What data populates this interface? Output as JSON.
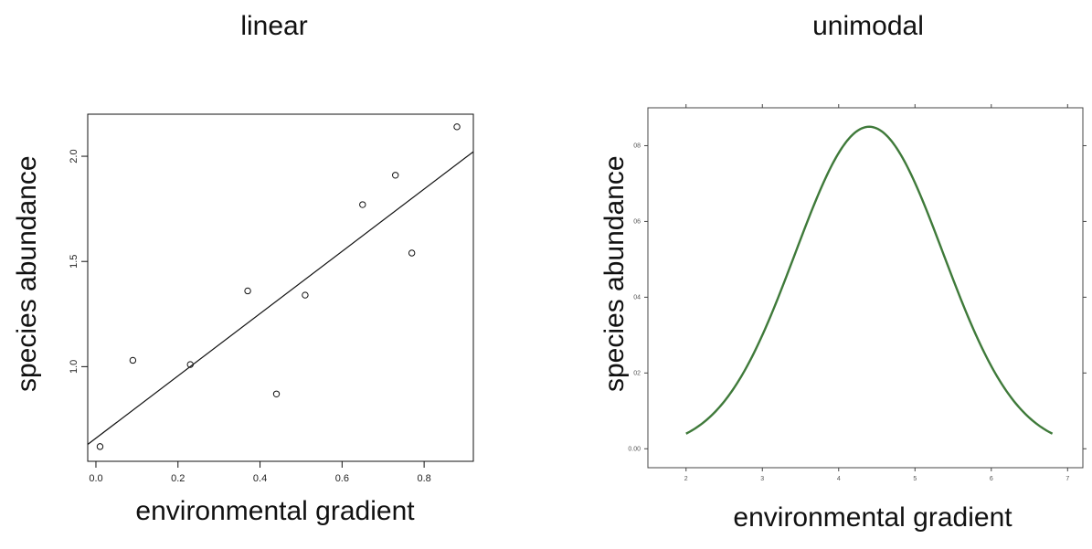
{
  "chart_data": [
    {
      "type": "scatter",
      "title": "linear",
      "xlabel": "environmental gradient",
      "ylabel": "species abundance",
      "xlim": [
        -0.02,
        0.92
      ],
      "ylim": [
        0.55,
        2.2
      ],
      "x_ticks": [
        0.0,
        0.2,
        0.4,
        0.6,
        0.8
      ],
      "x_tick_labels": [
        "0.0",
        "0.2",
        "0.4",
        "0.6",
        "0.8"
      ],
      "y_ticks": [
        1.0,
        1.5,
        2.0
      ],
      "y_tick_labels": [
        "1.0",
        "1.5",
        "2.0"
      ],
      "points": [
        {
          "x": 0.01,
          "y": 0.62
        },
        {
          "x": 0.09,
          "y": 1.03
        },
        {
          "x": 0.23,
          "y": 1.01
        },
        {
          "x": 0.37,
          "y": 1.36
        },
        {
          "x": 0.44,
          "y": 0.87
        },
        {
          "x": 0.51,
          "y": 1.34
        },
        {
          "x": 0.65,
          "y": 1.77
        },
        {
          "x": 0.73,
          "y": 1.91
        },
        {
          "x": 0.77,
          "y": 1.54
        },
        {
          "x": 0.88,
          "y": 2.14
        }
      ],
      "fit_line": {
        "intercept": 0.66,
        "slope": 1.48
      }
    },
    {
      "type": "line",
      "title": "unimodal",
      "xlabel": "environmental gradient",
      "ylabel": "species abundance",
      "xlim": [
        1.5,
        7.2
      ],
      "ylim": [
        -0.005,
        0.09
      ],
      "x_ticks": [
        2,
        3,
        4,
        5,
        6,
        7
      ],
      "x_tick_labels": [
        "2",
        "3",
        "4",
        "5",
        "6",
        "7"
      ],
      "y_ticks": [
        0.0,
        0.02,
        0.04,
        0.06,
        0.08
      ],
      "y_tick_labels": [
        "0.00",
        "02",
        "04",
        "06",
        "08"
      ],
      "line_color": "#3f7a3a",
      "curve": {
        "type": "gaussian",
        "mu": 4.4,
        "sigma": 0.97,
        "peak": 0.085,
        "x_range": [
          2.0,
          6.8
        ]
      }
    }
  ]
}
